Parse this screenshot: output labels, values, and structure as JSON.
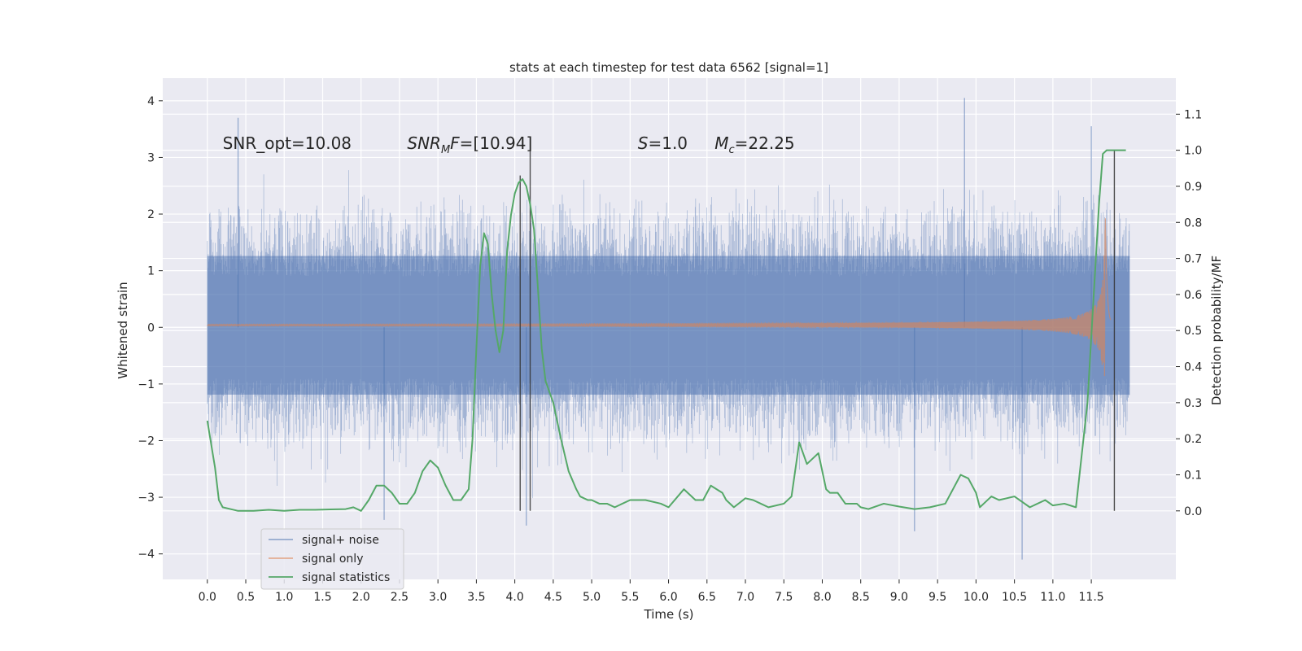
{
  "chart_data": {
    "type": "line",
    "title": "stats at each timestep for test data 6562 [signal=1]",
    "xlabel": "Time (s)",
    "ylabel": "Whitened strain",
    "ylabel_right": "Detection probability/MF",
    "xlim": [
      -0.58,
      12.6
    ],
    "ylim": [
      -4.45,
      4.4
    ],
    "ylim_right": [
      -0.19,
      1.2
    ],
    "x_ticks": [
      0.0,
      0.5,
      1.0,
      1.5,
      2.0,
      2.5,
      3.0,
      3.5,
      4.0,
      4.5,
      5.0,
      5.5,
      6.0,
      6.5,
      7.0,
      7.5,
      8.0,
      8.5,
      9.0,
      9.5,
      10.0,
      10.5,
      11.0,
      11.5
    ],
    "x_tick_labels": [
      "0.0",
      "0.5",
      "1.0",
      "1.5",
      "2.0",
      "2.5",
      "3.0",
      "3.5",
      "4.0",
      "4.5",
      "5.0",
      "5.5",
      "6.0",
      "6.5",
      "7.0",
      "7.5",
      "8.0",
      "8.5",
      "9.0",
      "9.5",
      "10.0",
      "10.5",
      "11.0",
      "11.5"
    ],
    "y_ticks": [
      -4,
      -3,
      -2,
      -1,
      0,
      1,
      2,
      3,
      4
    ],
    "y_tick_labels": [
      "−4",
      "−3",
      "−2",
      "−1",
      "0",
      "1",
      "2",
      "3",
      "4"
    ],
    "y_ticks_right": [
      0.0,
      0.1,
      0.2,
      0.3,
      0.4,
      0.5,
      0.6,
      0.7,
      0.8,
      0.9,
      1.0,
      1.1
    ],
    "y_tick_labels_right": [
      "0.0",
      "0.1",
      "0.2",
      "0.3",
      "0.4",
      "0.5",
      "0.6",
      "0.7",
      "0.8",
      "0.9",
      "1.0",
      "1.1"
    ],
    "grid": true,
    "legend_position": "lower-left",
    "colors": {
      "background": "#eaeaf2",
      "grid": "#ffffff",
      "noise": "#4c72b0",
      "signal": "#dd8452",
      "stats": "#55a868",
      "vline": "#333333"
    },
    "series": [
      {
        "name": "signal+ noise",
        "axis": "left",
        "kind": "noise",
        "x_range": [
          0.0,
          12.0
        ],
        "band_core": [
          -1.65,
          1.75
        ],
        "peak_range": [
          -4.1,
          4.05
        ]
      },
      {
        "name": "signal only",
        "axis": "left",
        "kind": "chirp",
        "x_range": [
          0.0,
          11.75
        ],
        "peak_time": 11.68,
        "peak_amplitude": 2.2
      },
      {
        "name": "signal statistics",
        "axis": "right",
        "kind": "line",
        "x": [
          0.0,
          0.1,
          0.15,
          0.2,
          0.3,
          0.4,
          0.5,
          0.6,
          0.8,
          1.0,
          1.2,
          1.4,
          1.6,
          1.8,
          1.9,
          2.0,
          2.1,
          2.2,
          2.3,
          2.4,
          2.5,
          2.6,
          2.7,
          2.8,
          2.9,
          3.0,
          3.1,
          3.2,
          3.3,
          3.4,
          3.45,
          3.5,
          3.55,
          3.6,
          3.65,
          3.7,
          3.75,
          3.8,
          3.85,
          3.9,
          3.95,
          4.0,
          4.05,
          4.1,
          4.15,
          4.2,
          4.25,
          4.3,
          4.35,
          4.4,
          4.45,
          4.5,
          4.6,
          4.7,
          4.8,
          4.85,
          4.9,
          4.95,
          5.0,
          5.1,
          5.2,
          5.3,
          5.5,
          5.7,
          5.9,
          6.0,
          6.2,
          6.35,
          6.45,
          6.55,
          6.7,
          6.75,
          6.85,
          7.0,
          7.1,
          7.2,
          7.3,
          7.5,
          7.6,
          7.7,
          7.8,
          7.9,
          7.95,
          8.05,
          8.1,
          8.2,
          8.3,
          8.45,
          8.5,
          8.6,
          8.8,
          9.0,
          9.2,
          9.4,
          9.6,
          9.8,
          9.9,
          10.0,
          10.05,
          10.1,
          10.2,
          10.3,
          10.5,
          10.7,
          10.9,
          11.0,
          11.15,
          11.3,
          11.45,
          11.6,
          11.65,
          11.7,
          11.75,
          11.8,
          11.85,
          11.9,
          11.95
        ],
        "y": [
          0.25,
          0.12,
          0.03,
          0.01,
          0.005,
          0.0,
          0.0,
          0.0,
          0.003,
          0.0,
          0.003,
          0.003,
          0.004,
          0.005,
          0.01,
          0.0,
          0.03,
          0.07,
          0.07,
          0.05,
          0.02,
          0.02,
          0.05,
          0.11,
          0.14,
          0.12,
          0.07,
          0.03,
          0.03,
          0.06,
          0.2,
          0.45,
          0.68,
          0.77,
          0.74,
          0.6,
          0.5,
          0.44,
          0.5,
          0.72,
          0.82,
          0.88,
          0.91,
          0.92,
          0.9,
          0.85,
          0.78,
          0.62,
          0.45,
          0.36,
          0.33,
          0.3,
          0.2,
          0.11,
          0.06,
          0.04,
          0.035,
          0.03,
          0.03,
          0.02,
          0.02,
          0.01,
          0.03,
          0.03,
          0.02,
          0.01,
          0.06,
          0.03,
          0.03,
          0.07,
          0.05,
          0.03,
          0.01,
          0.035,
          0.03,
          0.02,
          0.01,
          0.02,
          0.04,
          0.19,
          0.13,
          0.15,
          0.16,
          0.06,
          0.05,
          0.05,
          0.02,
          0.02,
          0.01,
          0.005,
          0.02,
          0.012,
          0.005,
          0.01,
          0.02,
          0.1,
          0.09,
          0.05,
          0.01,
          0.02,
          0.04,
          0.03,
          0.04,
          0.01,
          0.03,
          0.015,
          0.02,
          0.01,
          0.3,
          0.85,
          0.99,
          1.0,
          1.0,
          1.0,
          1.0,
          1.0,
          1.0
        ]
      }
    ],
    "vertical_lines": [
      {
        "x": 4.07,
        "y_range": [
          0.0,
          0.93
        ]
      },
      {
        "x": 4.2,
        "y_range": [
          0.0,
          1.0
        ]
      },
      {
        "x": 11.8,
        "y_range": [
          0.0,
          1.0
        ]
      }
    ],
    "annotations": [
      {
        "text": "SNR_opt=10.08",
        "x": 0.2,
        "y": 3.15,
        "style": "normal"
      },
      {
        "text": "SNR_MF=[10.94]",
        "x": 2.6,
        "y": 3.15,
        "style": "math",
        "base": "SNR",
        "sub": "M",
        "tail": "F=[10.94]"
      },
      {
        "text": "S=1.0",
        "x": 5.6,
        "y": 3.15,
        "style": "math",
        "base": "S",
        "sub": "",
        "tail": "=1.0"
      },
      {
        "text": "M_c=22.25",
        "x": 6.6,
        "y": 3.15,
        "style": "math",
        "base": "M",
        "sub": "c",
        "tail": "=22.25"
      }
    ],
    "legend": [
      "signal+ noise",
      "signal only",
      "signal statistics"
    ]
  }
}
